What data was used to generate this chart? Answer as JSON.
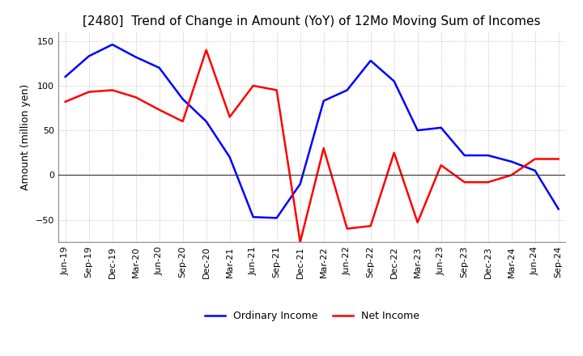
{
  "title": "[2480]  Trend of Change in Amount (YoY) of 12Mo Moving Sum of Incomes",
  "ylabel": "Amount (million yen)",
  "xlabels": [
    "Jun-19",
    "Sep-19",
    "Dec-19",
    "Mar-20",
    "Jun-20",
    "Sep-20",
    "Dec-20",
    "Mar-21",
    "Jun-21",
    "Sep-21",
    "Dec-21",
    "Mar-22",
    "Jun-22",
    "Sep-22",
    "Dec-22",
    "Mar-23",
    "Jun-23",
    "Sep-23",
    "Dec-23",
    "Mar-24",
    "Jun-24",
    "Sep-24"
  ],
  "ordinary_income": [
    110,
    133,
    146,
    132,
    120,
    85,
    60,
    20,
    -47,
    -48,
    -10,
    83,
    95,
    128,
    105,
    50,
    53,
    22,
    22,
    15,
    5,
    -38
  ],
  "net_income": [
    82,
    93,
    95,
    87,
    73,
    60,
    140,
    65,
    100,
    95,
    -75,
    30,
    -60,
    -57,
    25,
    -53,
    11,
    -8,
    -8,
    0,
    18,
    18
  ],
  "ordinary_color": "#0000ff",
  "net_color": "#ff0000",
  "ylim": [
    -75,
    160
  ],
  "yticks": [
    -50,
    0,
    50,
    100,
    150
  ],
  "grid_color": "#bbbbbb",
  "bg_color": "#ffffff",
  "zero_line_color": "#333333",
  "title_fontsize": 11,
  "axis_label_fontsize": 9,
  "tick_fontsize": 8,
  "legend_fontsize": 9,
  "line_width": 1.8
}
